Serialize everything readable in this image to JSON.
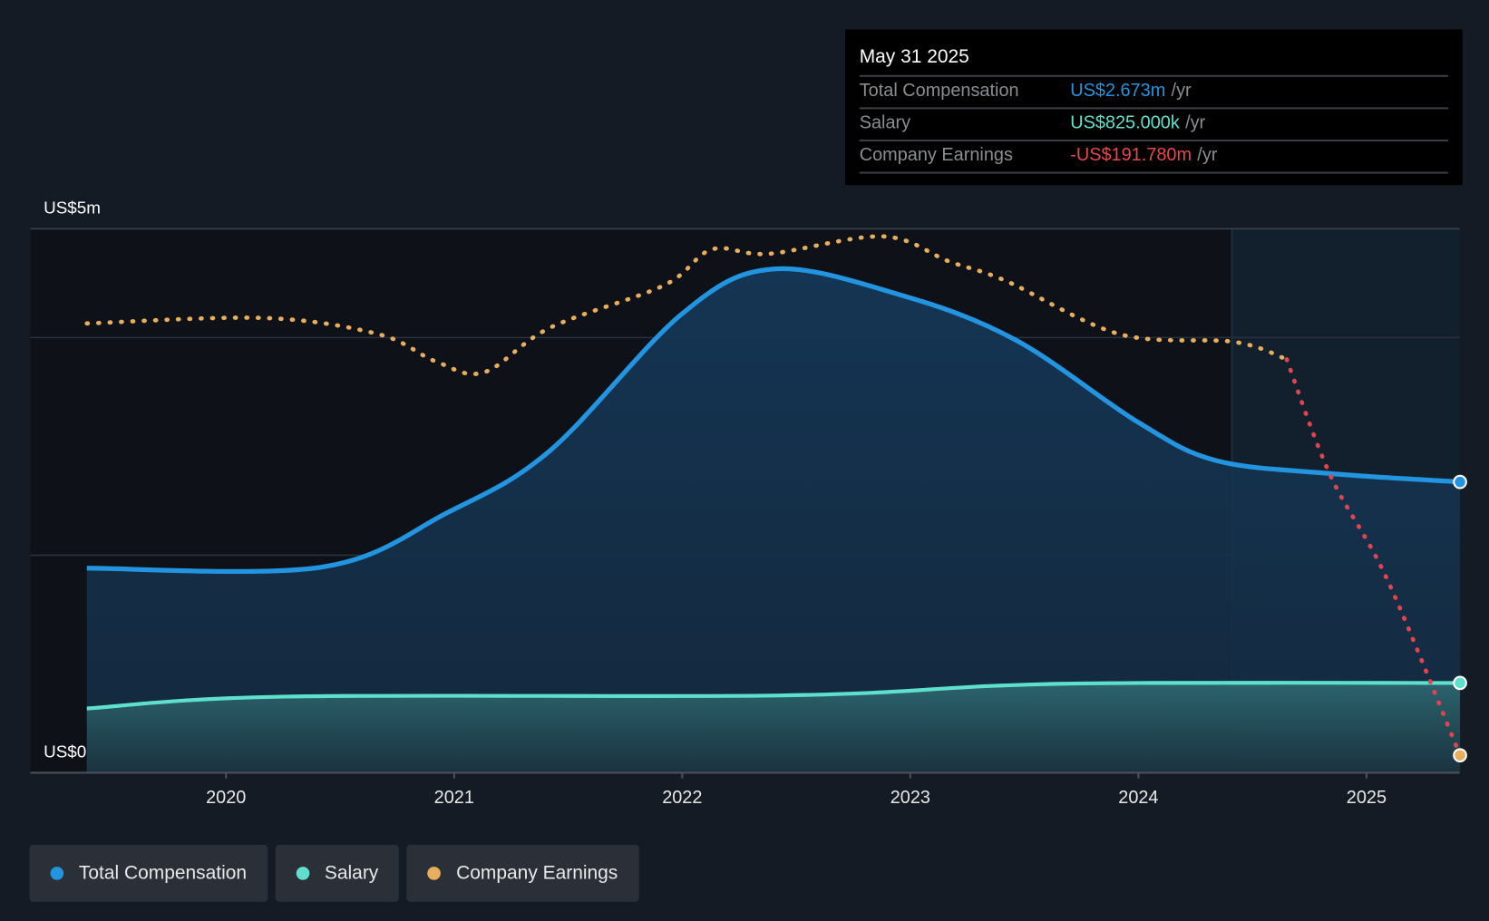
{
  "tooltip": {
    "date": "May 31 2025",
    "rows": [
      {
        "label": "Total Compensation",
        "value": "US$2.673m",
        "unit": "/yr",
        "color": "#2394e0"
      },
      {
        "label": "Salary",
        "value": "US$825.000k",
        "unit": "/yr",
        "color": "#5ee0cc"
      },
      {
        "label": "Company Earnings",
        "value": "-US$191.780m",
        "unit": "/yr",
        "color": "#e8474b"
      }
    ]
  },
  "legend": [
    {
      "label": "Total Compensation",
      "color": "#2394e0"
    },
    {
      "label": "Salary",
      "color": "#5ee0cc"
    },
    {
      "label": "Company Earnings",
      "color": "#e8ae5c"
    }
  ],
  "chart_data": {
    "type": "line",
    "ylabel_top": "US$5m",
    "ylabel_bottom": "US$0",
    "ylim": [
      0,
      5
    ],
    "xlim": [
      2019.2,
      2025.45
    ],
    "x_ticks": [
      "2020",
      "2021",
      "2022",
      "2023",
      "2024",
      "2025"
    ],
    "x_tick_values": [
      2020,
      2021,
      2022,
      2023,
      2024,
      2025
    ],
    "gridlines": [
      2,
      4,
      5
    ],
    "highlight_from": 2024.41,
    "series": [
      {
        "name": "Total Compensation",
        "color": "#2394e0",
        "unit": "US$m",
        "x": [
          2019.39,
          2020.42,
          2020.97,
          2021.42,
          2022.0,
          2022.4,
          2022.96,
          2023.46,
          2024.0,
          2024.34,
          2024.84,
          2025.41
        ],
        "y": [
          1.88,
          1.89,
          2.39,
          2.96,
          4.22,
          4.63,
          4.39,
          3.98,
          3.22,
          2.87,
          2.75,
          2.673
        ]
      },
      {
        "name": "Salary",
        "color": "#5ee0cc",
        "unit": "US$m",
        "x": [
          2019.39,
          2020.26,
          2022.43,
          2023.38,
          2024.0,
          2025.41
        ],
        "y": [
          0.59,
          0.7,
          0.71,
          0.8,
          0.825,
          0.825
        ]
      },
      {
        "name": "Company Earnings",
        "color": "#e8ae5c",
        "negative_color": "#e0454f",
        "unit": "relative (separate axis)",
        "x": [
          2019.39,
          2020.17,
          2020.67,
          2020.92,
          2021.13,
          2021.42,
          2021.92,
          2022.13,
          2022.38,
          2022.88,
          2023.17,
          2023.42,
          2023.92,
          2024.42,
          2024.65,
          2024.84,
          2025.09,
          2025.41
        ],
        "y": [
          4.13,
          4.18,
          4.03,
          3.78,
          3.68,
          4.09,
          4.48,
          4.81,
          4.77,
          4.93,
          4.7,
          4.52,
          4.03,
          3.96,
          3.8,
          2.74,
          1.78,
          0.16
        ],
        "negative_from_index": 14
      }
    ]
  }
}
